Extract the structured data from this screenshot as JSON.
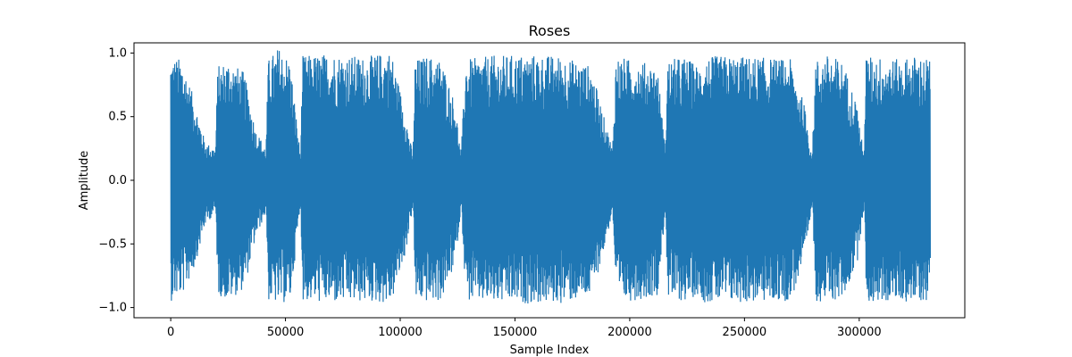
{
  "chart_data": {
    "type": "line",
    "title": "Roses",
    "xlabel": "Sample Index",
    "ylabel": "Amplitude",
    "xlim": [
      -16000,
      346000
    ],
    "ylim": [
      -1.08,
      1.08
    ],
    "xticks": [
      0,
      50000,
      100000,
      150000,
      200000,
      250000,
      300000
    ],
    "xtick_labels": [
      "0",
      "50000",
      "100000",
      "150000",
      "200000",
      "250000",
      "300000"
    ],
    "yticks": [
      -1.0,
      -0.5,
      0.0,
      0.5,
      1.0
    ],
    "ytick_labels": [
      "−1.0",
      "−0.5",
      "0.0",
      "0.5",
      "1.0"
    ],
    "grid": false,
    "series": [
      {
        "color": "#1f77b4",
        "sample_count": 331000,
        "envelope": {
          "x": [
            0,
            5000,
            10000,
            15000,
            19500,
            20500,
            25000,
            32000,
            37000,
            41500,
            42500,
            47000,
            52000,
            56500,
            57500,
            70000,
            85000,
            96000,
            102000,
            105500,
            106500,
            112000,
            118000,
            124000,
            126500,
            128500,
            140000,
            155000,
            170000,
            183000,
            188000,
            192500,
            194000,
            200000,
            206000,
            212000,
            215500,
            216500,
            224000,
            230000,
            232500,
            240000,
            255000,
            270000,
            276000,
            279500,
            281000,
            287000,
            293000,
            299000,
            302000,
            303000,
            310000,
            317000,
            324000,
            331000
          ],
          "max": [
            0.98,
            0.95,
            0.65,
            0.3,
            0.25,
            0.9,
            0.95,
            0.85,
            0.4,
            0.25,
            0.95,
            1.05,
            0.95,
            0.2,
            0.98,
            1.0,
            0.97,
            1.02,
            0.55,
            0.2,
            0.95,
            0.98,
            0.95,
            0.6,
            0.2,
            0.95,
            0.98,
            0.99,
            0.98,
            0.9,
            0.55,
            0.25,
            0.98,
            0.95,
            0.93,
            0.9,
            0.25,
            0.95,
            0.97,
            0.9,
            0.97,
            0.98,
            0.97,
            0.95,
            0.6,
            0.2,
            0.95,
            0.99,
            0.93,
            0.6,
            0.2,
            0.98,
            0.97,
            0.95,
            0.98,
            0.96
          ],
          "min": [
            -0.95,
            -0.9,
            -0.7,
            -0.35,
            -0.25,
            -0.9,
            -0.95,
            -0.85,
            -0.45,
            -0.25,
            -0.95,
            -0.98,
            -0.95,
            -0.2,
            -0.95,
            -0.97,
            -0.96,
            -0.97,
            -0.6,
            -0.2,
            -0.95,
            -0.96,
            -0.95,
            -0.65,
            -0.2,
            -0.95,
            -0.97,
            -0.97,
            -0.97,
            -0.92,
            -0.6,
            -0.25,
            -0.97,
            -0.95,
            -0.93,
            -0.9,
            -0.25,
            -0.95,
            -0.95,
            -0.9,
            -0.96,
            -0.97,
            -0.96,
            -0.95,
            -0.65,
            -0.2,
            -0.95,
            -0.96,
            -0.93,
            -0.65,
            -0.2,
            -0.97,
            -0.96,
            -0.95,
            -0.96,
            -0.95
          ]
        }
      }
    ]
  }
}
